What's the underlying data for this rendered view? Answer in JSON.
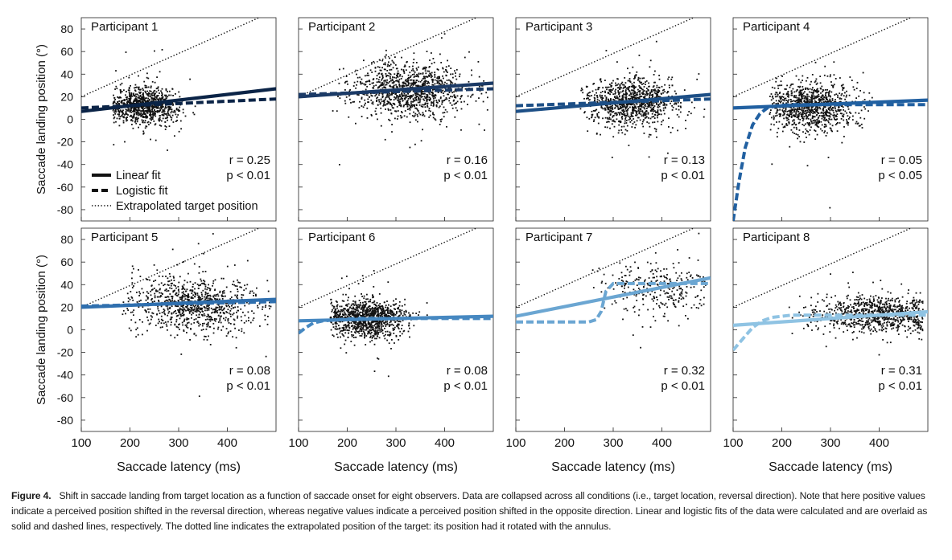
{
  "figure": {
    "caption_label": "Figure 4.",
    "caption_text": "Shift in saccade landing from target location as a function of saccade onset for eight observers. Data are collapsed across all conditions (i.e., target location, reversal direction). Note that here positive values indicate a perceived position shifted in the reversal direction, whereas negative values indicate a perceived position shifted in the opposite direction. Linear and logistic fits of the data were calculated and are overlaid as solid and dashed lines, respectively. The dotted line indicates the extrapolated position of the target: its position had it rotated with the annulus.",
    "y_axis_label": "Saccade landing position (°)",
    "x_axis_label": "Saccade latency (ms)",
    "legend": [
      {
        "label": "Linear fit",
        "style": "solid"
      },
      {
        "label": "Logistic fit",
        "style": "dashed"
      },
      {
        "label": "Extrapolated target position",
        "style": "dotted"
      }
    ],
    "x_ticks": [
      100,
      200,
      300,
      400
    ],
    "x_tick_labels": [
      "100",
      "200",
      "300",
      "400"
    ],
    "y_ticks": [
      80,
      60,
      40,
      20,
      0,
      -20,
      -40,
      -60,
      -80
    ],
    "y_tick_labels": [
      "80",
      "60",
      "40",
      "20",
      "0",
      "-20",
      "-40",
      "-60",
      "-80"
    ]
  },
  "chart_data": [
    {
      "type": "scatter",
      "title": "Participant 1",
      "r_text": "r = 0.25",
      "p_text": "p < 0.01",
      "color": "#0b2447",
      "xlim": [
        100,
        500
      ],
      "ylim": [
        -90,
        90
      ],
      "scatter": {
        "n": 900,
        "mu_x": 230,
        "sd_x": 35,
        "mu_y": 12,
        "sd_y": 8,
        "x_min": 165,
        "x_max": 380
      },
      "linear_fit": {
        "x": [
          100,
          500
        ],
        "y": [
          7,
          27
        ]
      },
      "logistic_fit": {
        "x": [
          100,
          500
        ],
        "y": [
          10,
          18
        ]
      },
      "extrapolated": {
        "x": [
          100,
          465
        ],
        "y": [
          20,
          90
        ]
      }
    },
    {
      "type": "scatter",
      "title": "Participant 2",
      "r_text": "r = 0.16",
      "p_text": "p < 0.01",
      "color": "#1b3a66",
      "xlim": [
        100,
        500
      ],
      "ylim": [
        -90,
        90
      ],
      "scatter": {
        "n": 1100,
        "mu_x": 330,
        "sd_x": 60,
        "mu_y": 26,
        "sd_y": 12,
        "x_min": 170,
        "x_max": 490
      },
      "linear_fit": {
        "x": [
          100,
          500
        ],
        "y": [
          20,
          32
        ]
      },
      "logistic_fit": {
        "x": [
          100,
          500
        ],
        "y": [
          22,
          27
        ]
      },
      "extrapolated": {
        "x": [
          100,
          465
        ],
        "y": [
          20,
          90
        ]
      }
    },
    {
      "type": "scatter",
      "title": "Participant 3",
      "r_text": "r = 0.13",
      "p_text": "p < 0.01",
      "color": "#1d4f86",
      "xlim": [
        100,
        500
      ],
      "ylim": [
        -90,
        90
      ],
      "scatter": {
        "n": 1000,
        "mu_x": 340,
        "sd_x": 45,
        "mu_y": 15,
        "sd_y": 11,
        "x_min": 230,
        "x_max": 490
      },
      "linear_fit": {
        "x": [
          100,
          500
        ],
        "y": [
          7,
          22
        ]
      },
      "logistic_fit": {
        "x": [
          100,
          500
        ],
        "y": [
          12,
          18
        ]
      },
      "extrapolated": {
        "x": [
          100,
          465
        ],
        "y": [
          20,
          90
        ]
      }
    },
    {
      "type": "scatter",
      "title": "Participant 4",
      "r_text": "r = 0.05",
      "p_text": "p < 0.05",
      "color": "#2160a1",
      "xlim": [
        100,
        500
      ],
      "ylim": [
        -90,
        90
      ],
      "scatter": {
        "n": 1000,
        "mu_x": 260,
        "sd_x": 45,
        "mu_y": 11,
        "sd_y": 10,
        "x_min": 175,
        "x_max": 450
      },
      "linear_fit": {
        "x": [
          100,
          500
        ],
        "y": [
          10,
          17
        ]
      },
      "logistic_fit": {
        "x": [
          100,
          112,
          125,
          140,
          155,
          170,
          190,
          220,
          260,
          320,
          400,
          500
        ],
        "y": [
          -90,
          -55,
          -25,
          -5,
          5,
          10,
          12,
          13,
          13,
          13,
          13,
          13
        ]
      },
      "extrapolated": {
        "x": [
          100,
          465
        ],
        "y": [
          20,
          90
        ]
      }
    },
    {
      "type": "scatter",
      "title": "Participant 5",
      "r_text": "r = 0.08",
      "p_text": "p < 0.01",
      "color": "#2f6fae",
      "xlim": [
        100,
        500
      ],
      "ylim": [
        -90,
        90
      ],
      "scatter": {
        "n": 900,
        "mu_x": 330,
        "sd_x": 65,
        "mu_y": 22,
        "sd_y": 13,
        "x_min": 185,
        "x_max": 490
      },
      "linear_fit": {
        "x": [
          100,
          500
        ],
        "y": [
          20,
          27
        ]
      },
      "logistic_fit": {
        "x": [
          100,
          500
        ],
        "y": [
          21,
          25
        ]
      },
      "extrapolated": {
        "x": [
          100,
          465
        ],
        "y": [
          20,
          90
        ]
      }
    },
    {
      "type": "scatter",
      "title": "Participant 6",
      "r_text": "r = 0.08",
      "p_text": "p < 0.01",
      "color": "#4688c1",
      "xlim": [
        100,
        500
      ],
      "ylim": [
        -90,
        90
      ],
      "scatter": {
        "n": 1100,
        "mu_x": 240,
        "sd_x": 40,
        "mu_y": 10,
        "sd_y": 8,
        "x_min": 165,
        "x_max": 490
      },
      "linear_fit": {
        "x": [
          100,
          500
        ],
        "y": [
          8,
          12
        ]
      },
      "logistic_fit": {
        "x": [
          100,
          115,
          130,
          150,
          180,
          220,
          300,
          400,
          500
        ],
        "y": [
          -3,
          2,
          6,
          8,
          9,
          10,
          10,
          10,
          10
        ]
      },
      "extrapolated": {
        "x": [
          100,
          465
        ],
        "y": [
          20,
          90
        ]
      }
    },
    {
      "type": "scatter",
      "title": "Participant 7",
      "r_text": "r = 0.32",
      "p_text": "p < 0.01",
      "color": "#6ba6d2",
      "xlim": [
        100,
        500
      ],
      "ylim": [
        -90,
        90
      ],
      "scatter": {
        "n": 300,
        "mu_x": 390,
        "sd_x": 50,
        "mu_y": 36,
        "sd_y": 12,
        "x_min": 250,
        "x_max": 490
      },
      "linear_fit": {
        "x": [
          100,
          500
        ],
        "y": [
          12,
          46
        ]
      },
      "logistic_fit": {
        "x": [
          100,
          250,
          265,
          275,
          285,
          300,
          330,
          400,
          500
        ],
        "y": [
          7,
          7,
          9,
          16,
          34,
          41,
          41,
          41,
          41
        ]
      },
      "extrapolated": {
        "x": [
          100,
          465
        ],
        "y": [
          20,
          90
        ]
      }
    },
    {
      "type": "scatter",
      "title": "Participant 8",
      "r_text": "r = 0.31",
      "p_text": "p < 0.01",
      "color": "#8fc3e3",
      "xlim": [
        100,
        500
      ],
      "ylim": [
        -90,
        90
      ],
      "scatter": {
        "n": 900,
        "mu_x": 390,
        "sd_x": 65,
        "mu_y": 14,
        "sd_y": 8,
        "x_min": 140,
        "x_max": 490
      },
      "linear_fit": {
        "x": [
          100,
          500
        ],
        "y": [
          4,
          16
        ]
      },
      "logistic_fit": {
        "x": [
          100,
          120,
          140,
          160,
          180,
          220,
          300,
          400,
          500
        ],
        "y": [
          -18,
          -8,
          2,
          8,
          11,
          13,
          13,
          13,
          13
        ]
      },
      "extrapolated": {
        "x": [
          100,
          465
        ],
        "y": [
          20,
          90
        ]
      }
    }
  ]
}
